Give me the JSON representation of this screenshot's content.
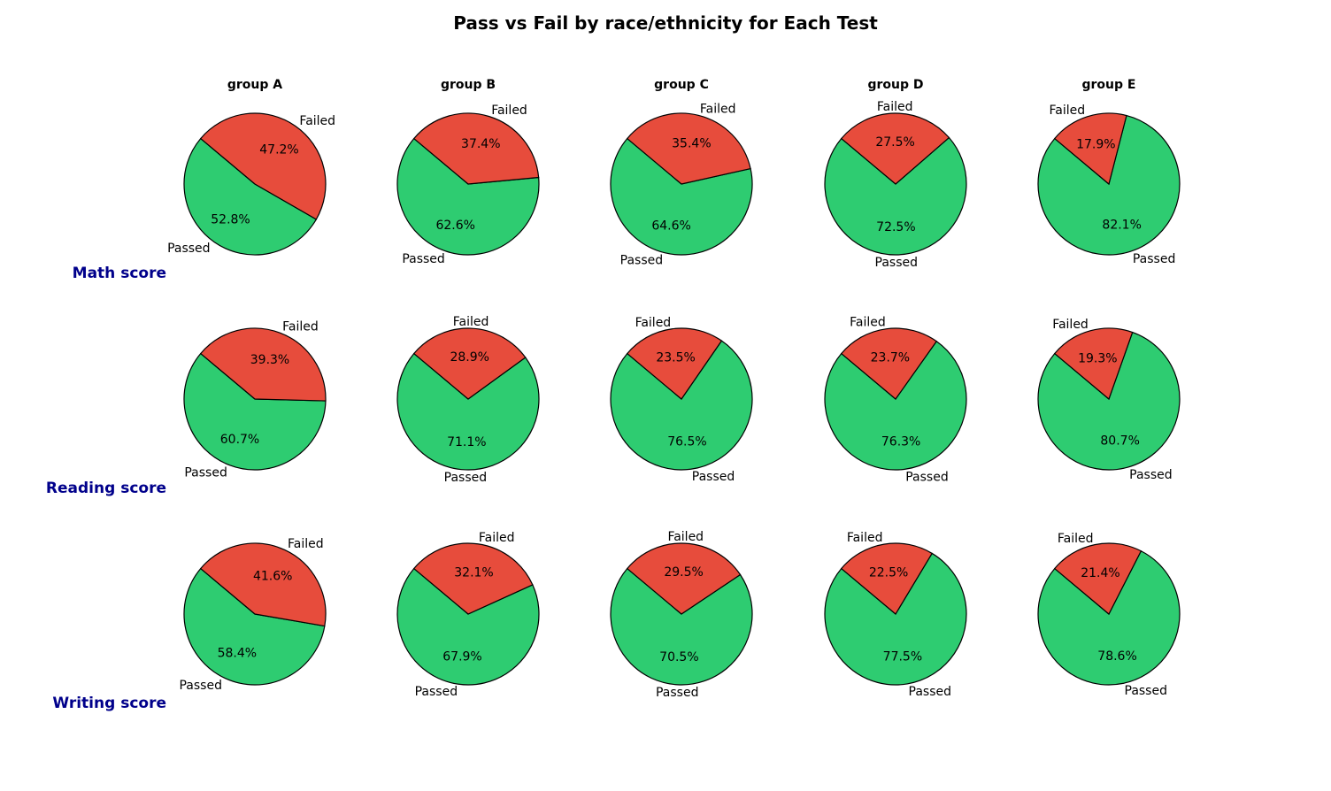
{
  "title": "Pass vs Fail by race/ethnicity for Each Test",
  "colors": {
    "passed": "#2ecc71",
    "failed": "#e74c3c",
    "row_label": "#00008b",
    "edge": "#000000"
  },
  "chart_data": {
    "type": "pie",
    "title": "Pass vs Fail by race/ethnicity for Each Test",
    "columns": [
      "group A",
      "group B",
      "group C",
      "group D",
      "group E"
    ],
    "rows": [
      "Math score",
      "Reading score",
      "Writing score"
    ],
    "slice_labels": [
      "Passed",
      "Failed"
    ],
    "start_angle_deg": 140,
    "direction": "counterclockwise",
    "pies": [
      [
        {
          "group": "group A",
          "Passed": 52.8,
          "Failed": 47.2,
          "passed_label": "52.8%",
          "failed_label": "47.2%"
        },
        {
          "group": "group B",
          "Passed": 62.6,
          "Failed": 37.4,
          "passed_label": "62.6%",
          "failed_label": "37.4%"
        },
        {
          "group": "group C",
          "Passed": 64.6,
          "Failed": 35.4,
          "passed_label": "64.6%",
          "failed_label": "35.4%"
        },
        {
          "group": "group D",
          "Passed": 72.5,
          "Failed": 27.5,
          "passed_label": "72.5%",
          "failed_label": "27.5%"
        },
        {
          "group": "group E",
          "Passed": 82.1,
          "Failed": 17.9,
          "passed_label": "82.1%",
          "failed_label": "17.9%"
        }
      ],
      [
        {
          "group": "group A",
          "Passed": 60.7,
          "Failed": 39.3,
          "passed_label": "60.7%",
          "failed_label": "39.3%"
        },
        {
          "group": "group B",
          "Passed": 71.1,
          "Failed": 28.9,
          "passed_label": "71.1%",
          "failed_label": "28.9%"
        },
        {
          "group": "group C",
          "Passed": 76.5,
          "Failed": 23.5,
          "passed_label": "76.5%",
          "failed_label": "23.5%"
        },
        {
          "group": "group D",
          "Passed": 76.3,
          "Failed": 23.7,
          "passed_label": "76.3%",
          "failed_label": "23.7%"
        },
        {
          "group": "group E",
          "Passed": 80.7,
          "Failed": 19.3,
          "passed_label": "80.7%",
          "failed_label": "19.3%"
        }
      ],
      [
        {
          "group": "group A",
          "Passed": 58.4,
          "Failed": 41.6,
          "passed_label": "58.4%",
          "failed_label": "41.6%"
        },
        {
          "group": "group B",
          "Passed": 67.9,
          "Failed": 32.1,
          "passed_label": "67.9%",
          "failed_label": "32.1%"
        },
        {
          "group": "group C",
          "Passed": 70.5,
          "Failed": 29.5,
          "passed_label": "70.5%",
          "failed_label": "29.5%"
        },
        {
          "group": "group D",
          "Passed": 77.5,
          "Failed": 22.5,
          "passed_label": "77.5%",
          "failed_label": "22.5%"
        },
        {
          "group": "group E",
          "Passed": 78.6,
          "Failed": 21.4,
          "passed_label": "78.6%",
          "failed_label": "21.4%"
        }
      ]
    ]
  }
}
